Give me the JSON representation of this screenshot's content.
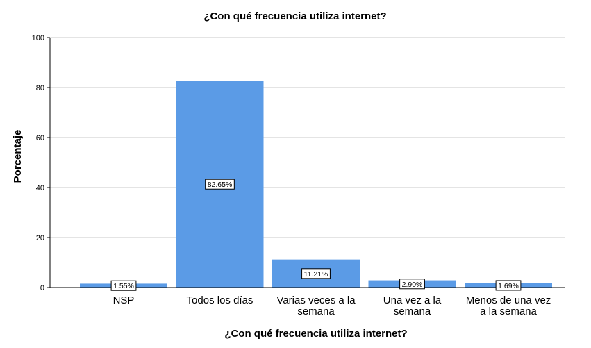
{
  "chart_data": {
    "type": "bar",
    "title": "¿Con qué frecuencia utiliza internet?",
    "xlabel": "¿Con qué frecuencia utiliza internet?",
    "ylabel": "Porcentaje",
    "ylim": [
      0,
      100
    ],
    "yticks": [
      "0",
      "20",
      "40",
      "60",
      "80",
      "100"
    ],
    "grid": true,
    "categories": [
      [
        "NSP"
      ],
      [
        "Todos los días"
      ],
      [
        "Varias veces a la",
        "semana"
      ],
      [
        "Una vez a la",
        "semana"
      ],
      [
        "Menos de una vez",
        "a la semana"
      ]
    ],
    "values": [
      1.55,
      82.65,
      11.21,
      2.9,
      1.69
    ],
    "data_labels": [
      "1.55%",
      "82.65%",
      "11.21%",
      "2.90%",
      "1.69%"
    ],
    "bar_color": "#5b9be6"
  }
}
